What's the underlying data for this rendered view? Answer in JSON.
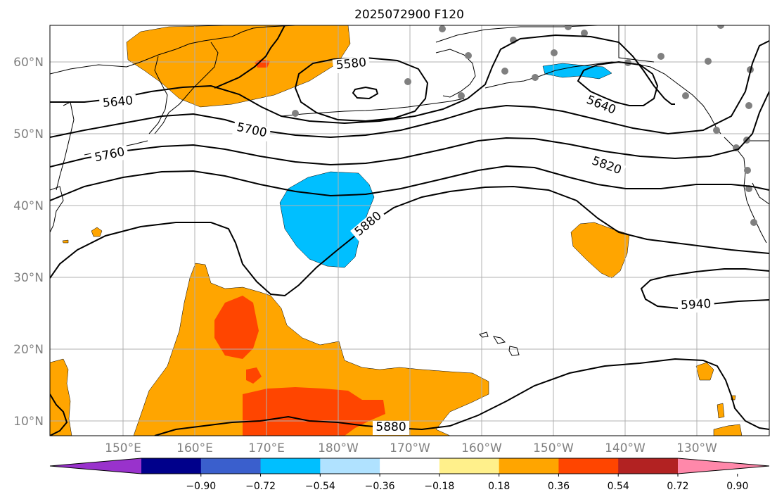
{
  "title": "2025072900 F120",
  "map": {
    "lat_labels": [
      "60°N",
      "50°N",
      "40°N",
      "30°N",
      "20°N",
      "10°N"
    ],
    "lon_labels": [
      "150°E",
      "160°E",
      "170°E",
      "180°W",
      "170°W",
      "160°W",
      "150°W",
      "140°W",
      "130°W"
    ],
    "contour_labels": [
      "5580",
      "5640",
      "5640",
      "5700",
      "5760",
      "5820",
      "5880",
      "5880",
      "5940"
    ],
    "colors": {
      "anomaly_pos_1": "#ffa500",
      "anomaly_pos_2": "#ff4500",
      "anomaly_neg_2": "#00bfff",
      "station_dot": "#808080",
      "contour": "#000000",
      "grid": "#b0b0b0"
    }
  },
  "colorbar": {
    "colors": [
      "#9932cc",
      "#00008b",
      "#3a5fcd",
      "#00bfff",
      "#b0e2ff",
      "#ffffff",
      "#fff08b",
      "#ffa500",
      "#ff4500",
      "#b22222",
      "#ff88aa"
    ],
    "ticks": [
      "−0.90",
      "−0.72",
      "−0.54",
      "−0.36",
      "−0.18",
      "0.18",
      "0.36",
      "0.54",
      "0.72",
      "0.90"
    ]
  }
}
